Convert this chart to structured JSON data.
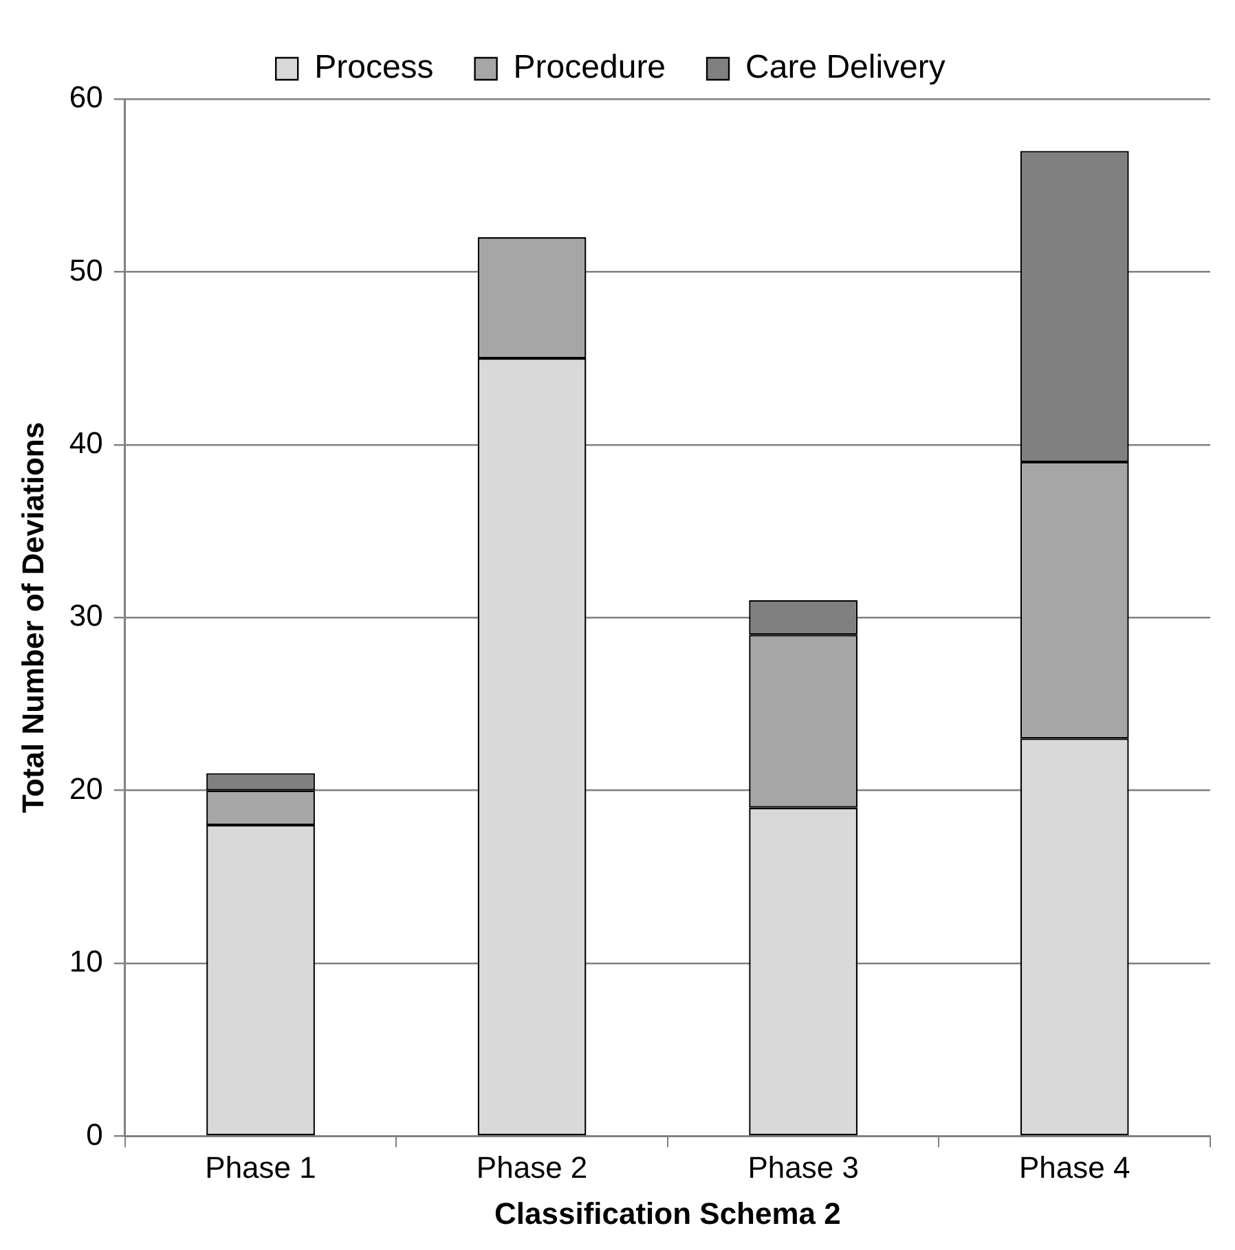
{
  "chart_data": {
    "type": "bar",
    "stacked": true,
    "xlabel": "Classification Schema 2",
    "ylabel": "Total Number of Deviations",
    "categories": [
      "Phase 1",
      "Phase 2",
      "Phase 3",
      "Phase 4"
    ],
    "series": [
      {
        "name": "Process",
        "color": "#d9d9d9",
        "values": [
          18,
          45,
          19,
          23
        ]
      },
      {
        "name": "Procedure",
        "color": "#a6a6a6",
        "values": [
          2,
          7,
          10,
          16
        ]
      },
      {
        "name": "Care Delivery",
        "color": "#808080",
        "values": [
          1,
          0,
          2,
          18
        ]
      }
    ],
    "ylim": [
      0,
      60
    ],
    "yticks": [
      0,
      10,
      20,
      30,
      40,
      50,
      60
    ],
    "grid": "y",
    "legend": "top"
  }
}
